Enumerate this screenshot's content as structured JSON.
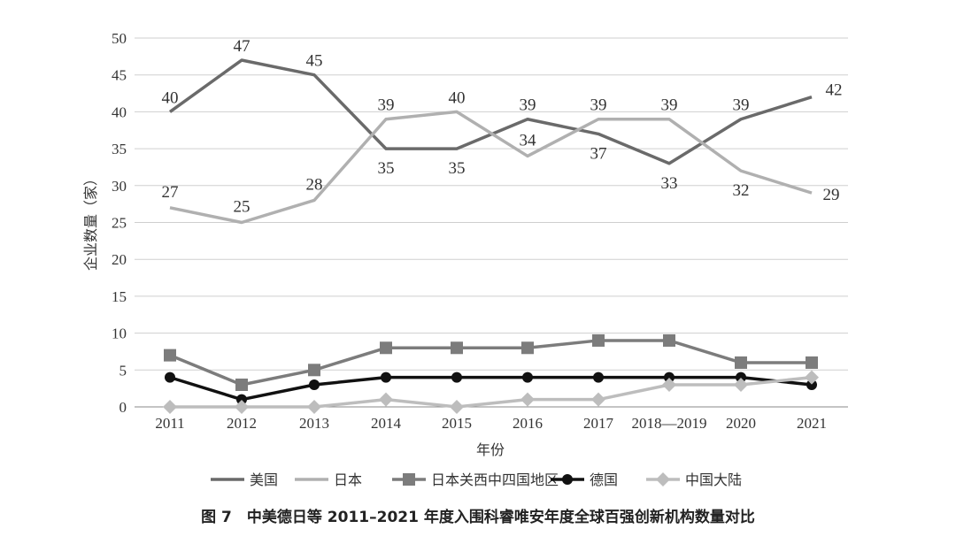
{
  "chart_data": {
    "type": "line",
    "title": "",
    "xlabel": "年份",
    "ylabel": "企业数量（家）",
    "ylim": [
      0,
      50
    ],
    "yticks": [
      0,
      5,
      10,
      15,
      20,
      25,
      30,
      35,
      40,
      45,
      50
    ],
    "categories": [
      "2011",
      "2012",
      "2013",
      "2014",
      "2015",
      "2016",
      "2017",
      "2018—2019",
      "2020",
      "2021"
    ],
    "grid": true,
    "legend_position": "bottom",
    "series": [
      {
        "name": "美国",
        "values": [
          40,
          47,
          45,
          35,
          35,
          39,
          37,
          33,
          39,
          42
        ],
        "color": "#6a6a6a",
        "marker": "none",
        "labels": "alternate"
      },
      {
        "name": "日本",
        "values": [
          27,
          25,
          28,
          39,
          40,
          34,
          39,
          39,
          32,
          29
        ],
        "color": "#b0b0b0",
        "marker": "none",
        "labels": "alternate"
      },
      {
        "name": "日本关西中四国地区",
        "values": [
          7,
          3,
          5,
          8,
          8,
          8,
          9,
          9,
          6,
          6
        ],
        "color": "#7c7c7c",
        "marker": "square"
      },
      {
        "name": "德国",
        "values": [
          4,
          1,
          3,
          4,
          4,
          4,
          4,
          4,
          4,
          3
        ],
        "color": "#111111",
        "marker": "circle"
      },
      {
        "name": "中国大陆",
        "values": [
          0,
          0,
          0,
          1,
          0,
          1,
          1,
          3,
          3,
          4
        ],
        "color": "#bdbdbd",
        "marker": "diamond"
      }
    ]
  },
  "caption": "图 7　中美德日等 2011–2021 年度入围科睿唯安年度全球百强创新机构数量对比"
}
